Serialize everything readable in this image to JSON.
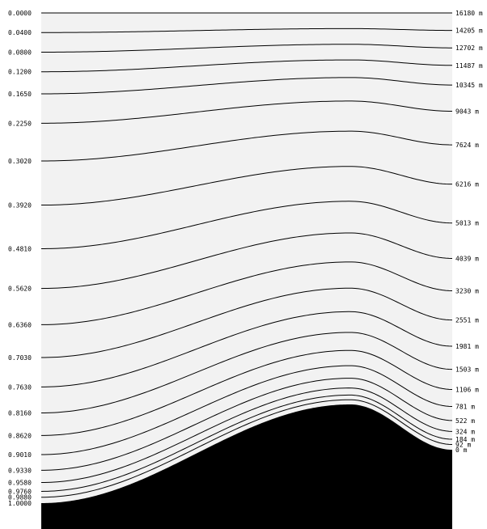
{
  "diagram": {
    "left_labels": [
      "0.0000",
      "0.0400",
      "0.0800",
      "0.1200",
      "0.1650",
      "0.2250",
      "0.3020",
      "0.3920",
      "0.4810",
      "0.5620",
      "0.6360",
      "0.7030",
      "0.7630",
      "0.8160",
      "0.8620",
      "0.9010",
      "0.9330",
      "0.9580",
      "0.9760",
      "0.9880",
      "1.0000"
    ],
    "right_labels": [
      "16180 m",
      "14205 m",
      "12702 m",
      "11487 m",
      "10345 m",
      "9043 m",
      "7624 m",
      "6216 m",
      "5013 m",
      "4039 m",
      "3230 m",
      "2551 m",
      "1981 m",
      "1503 m",
      "1106 m",
      "781 m",
      "522 m",
      "324 m",
      "184 m",
      "92 m",
      "0 m"
    ],
    "colors": {
      "background": "#f2f2f2",
      "terrain": "#000000",
      "lines": "#000000"
    }
  }
}
